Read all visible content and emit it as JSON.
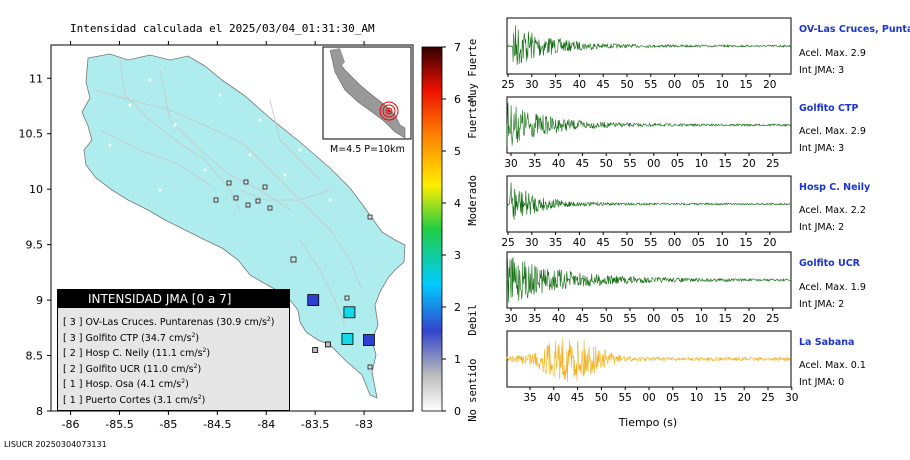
{
  "map": {
    "title": "Intensidad calculada el 2025/03/04_01:31:30_AM",
    "lon_ticks": [
      "-86",
      "-85.5",
      "-85",
      "-84.5",
      "-84",
      "-83.5",
      "-83"
    ],
    "lat_ticks": [
      "11",
      "10.5",
      "10",
      "9.5",
      "9",
      "8.5",
      "8"
    ],
    "inset_label": "M=4.5 P=10km",
    "footer": "LISUCR 20250304073131"
  },
  "colorbar": {
    "ticks": [
      "0",
      "1",
      "2",
      "3",
      "4",
      "5",
      "6",
      "7"
    ],
    "labels": [
      "No sentido",
      "Debil",
      "Moderado",
      "Fuerte",
      "Muy Fuerte"
    ]
  },
  "legend": {
    "title": "INTENSIDAD JMA [0 a 7]",
    "rows": [
      {
        "num": "[ 3 ]",
        "text": "OV-Las Cruces. Puntarenas (30.9 cm/s",
        "unit_sup": "2",
        "close": ")"
      },
      {
        "num": "[ 3 ]",
        "text": "Golfito CTP (34.7 cm/s",
        "unit_sup": "2",
        "close": ")"
      },
      {
        "num": "[ 2 ]",
        "text": "Hosp C. Neily (11.1 cm/s",
        "unit_sup": "2",
        "close": ")"
      },
      {
        "num": "[ 2 ]",
        "text": "Golfito UCR (11.0 cm/s",
        "unit_sup": "2",
        "close": ")"
      },
      {
        "num": "[ 1 ]",
        "text": "Hosp. Osa (4.1 cm/s",
        "unit_sup": "2",
        "close": ")"
      },
      {
        "num": "[ 1 ]",
        "text": "Puerto Cortes (3.1 cm/s",
        "unit_sup": "2",
        "close": ")"
      }
    ]
  },
  "stations": [
    {
      "name": "OV-Las Cruces, Puntar",
      "acel": "Acel. Max. 2.9",
      "jma": "Int JMA: 3",
      "ticks": [
        "25",
        "30",
        "35",
        "40",
        "45",
        "50",
        "55",
        "00",
        "05",
        "10",
        "15",
        "20"
      ]
    },
    {
      "name": "Golfito CTP",
      "acel": "Acel. Max. 2.9",
      "jma": "Int JMA: 3",
      "ticks": [
        "30",
        "35",
        "40",
        "45",
        "50",
        "55",
        "00",
        "05",
        "10",
        "15",
        "20",
        "25"
      ]
    },
    {
      "name": "Hosp C. Neily",
      "acel": "Acel. Max. 2.2",
      "jma": "Int JMA: 2",
      "ticks": [
        "25",
        "30",
        "35",
        "40",
        "45",
        "50",
        "55",
        "00",
        "05",
        "10",
        "15",
        "20"
      ]
    },
    {
      "name": "Golfito UCR",
      "acel": "Acel. Max. 1.9",
      "jma": "Int JMA: 2",
      "ticks": [
        "30",
        "35",
        "40",
        "45",
        "50",
        "55",
        "00",
        "05",
        "10",
        "15",
        "20",
        "25"
      ]
    },
    {
      "name": "La Sabana",
      "acel": "Acel. Max. 0.1",
      "jma": "Int JMA: 0",
      "ticks": [
        "35",
        "40",
        "45",
        "50",
        "55",
        "00",
        "05",
        "10",
        "15",
        "20",
        "25",
        "30"
      ]
    }
  ],
  "waveform_xlabel": "Tiempo (s)",
  "colors": {
    "land": "#aeecee",
    "wave_green": "#0d6b0d",
    "wave_orange": "#f2b020",
    "station_name": "#1a35d0"
  },
  "chart_data": [
    {
      "type": "scatter",
      "title": "Intensidad calculada el 2025/03/04_01:31:30_AM",
      "xlim": [
        -86.2,
        -82.5
      ],
      "ylim": [
        8.0,
        11.3
      ],
      "points": [
        {
          "label": "OV-Las Cruces. Puntarenas",
          "x": -83.15,
          "y": 8.89,
          "jma": 3
        },
        {
          "label": "Golfito CTP",
          "x": -83.17,
          "y": 8.65,
          "jma": 3
        },
        {
          "label": "Hosp C. Neily",
          "x": -82.95,
          "y": 8.64,
          "jma": 2
        },
        {
          "label": "Golfito UCR",
          "x": -83.52,
          "y": 9.0,
          "jma": 2
        },
        {
          "label": "Hosp. Osa",
          "x": -83.5,
          "y": 8.55,
          "jma": 1
        },
        {
          "label": "Puerto Cortes",
          "x": -83.37,
          "y": 8.6,
          "jma": 1
        }
      ],
      "colorbar_range": [
        0,
        7
      ]
    },
    {
      "type": "line",
      "xlabel": "Tiempo (s)",
      "series": [
        {
          "name": "OV-Las Cruces, Puntar",
          "peak": 2.9,
          "jma": 3
        },
        {
          "name": "Golfito CTP",
          "peak": 2.9,
          "jma": 3
        },
        {
          "name": "Hosp C. Neily",
          "peak": 2.2,
          "jma": 2
        },
        {
          "name": "Golfito UCR",
          "peak": 1.9,
          "jma": 2
        },
        {
          "name": "La Sabana",
          "peak": 0.1,
          "jma": 0
        }
      ]
    }
  ]
}
